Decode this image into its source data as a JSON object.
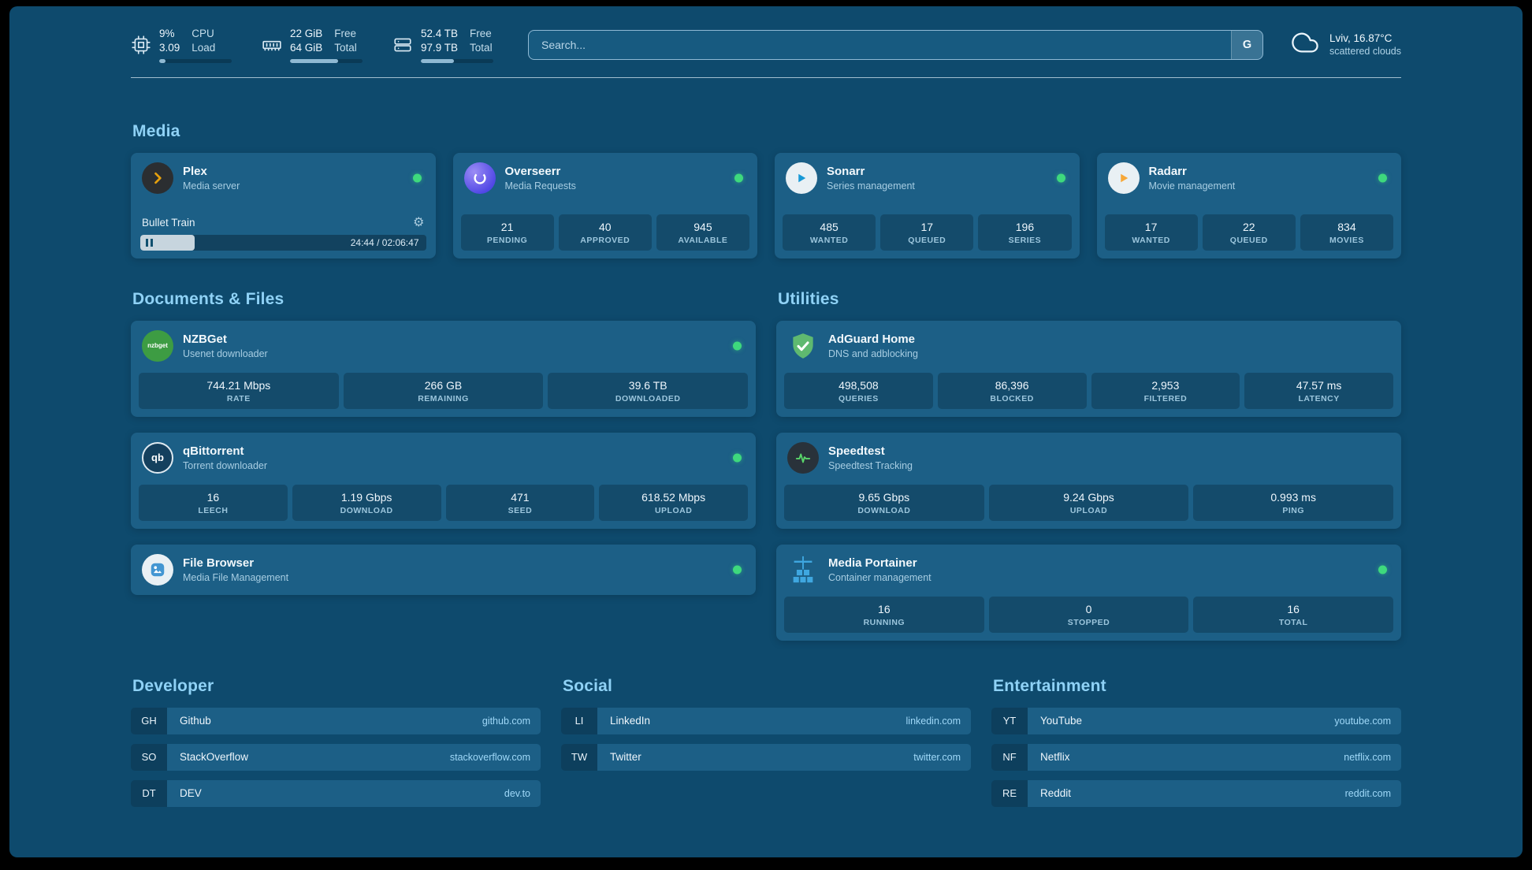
{
  "topbar": {
    "resources": [
      {
        "id": "cpu",
        "value1": "9%",
        "value2": "3.09",
        "label1": "CPU",
        "label2": "Load",
        "progress_percent": 9
      },
      {
        "id": "memory",
        "value1": "22 GiB",
        "value2": "64 GiB",
        "label1": "Free",
        "label2": "Total",
        "progress_percent": 66
      },
      {
        "id": "disk",
        "value1": "52.4 TB",
        "value2": "97.9 TB",
        "label1": "Free",
        "label2": "Total",
        "progress_percent": 46
      }
    ],
    "search": {
      "placeholder": "Search...",
      "provider_label": "G"
    },
    "weather": {
      "summary": "Lviv, 16.87°C",
      "condition": "scattered clouds"
    }
  },
  "sections": {
    "media": "Media",
    "documents": "Documents & Files",
    "utilities": "Utilities",
    "developer": "Developer",
    "social": "Social",
    "entertainment": "Entertainment"
  },
  "services": {
    "plex": {
      "title": "Plex",
      "subtitle": "Media server",
      "now_playing": "Bullet Train",
      "time": "24:44 / 02:06:47",
      "progress_percent": 19
    },
    "overseerr": {
      "title": "Overseerr",
      "subtitle": "Media Requests",
      "stats": [
        {
          "value": "21",
          "label": "PENDING"
        },
        {
          "value": "40",
          "label": "APPROVED"
        },
        {
          "value": "945",
          "label": "AVAILABLE"
        }
      ]
    },
    "sonarr": {
      "title": "Sonarr",
      "subtitle": "Series management",
      "stats": [
        {
          "value": "485",
          "label": "WANTED"
        },
        {
          "value": "17",
          "label": "QUEUED"
        },
        {
          "value": "196",
          "label": "SERIES"
        }
      ]
    },
    "radarr": {
      "title": "Radarr",
      "subtitle": "Movie management",
      "stats": [
        {
          "value": "17",
          "label": "WANTED"
        },
        {
          "value": "22",
          "label": "QUEUED"
        },
        {
          "value": "834",
          "label": "MOVIES"
        }
      ]
    },
    "nzbget": {
      "title": "NZBGet",
      "subtitle": "Usenet downloader",
      "icon_text": "nzbget",
      "stats": [
        {
          "value": "744.21 Mbps",
          "label": "RATE"
        },
        {
          "value": "266 GB",
          "label": "REMAINING"
        },
        {
          "value": "39.6 TB",
          "label": "DOWNLOADED"
        }
      ]
    },
    "qbittorrent": {
      "title": "qBittorrent",
      "subtitle": "Torrent downloader",
      "icon_text": "qb",
      "stats": [
        {
          "value": "16",
          "label": "LEECH"
        },
        {
          "value": "1.19 Gbps",
          "label": "DOWNLOAD"
        },
        {
          "value": "471",
          "label": "SEED"
        },
        {
          "value": "618.52 Mbps",
          "label": "UPLOAD"
        }
      ]
    },
    "filebrowser": {
      "title": "File Browser",
      "subtitle": "Media File Management"
    },
    "adguard": {
      "title": "AdGuard Home",
      "subtitle": "DNS and adblocking",
      "stats": [
        {
          "value": "498,508",
          "label": "QUERIES"
        },
        {
          "value": "86,396",
          "label": "BLOCKED"
        },
        {
          "value": "2,953",
          "label": "FILTERED"
        },
        {
          "value": "47.57 ms",
          "label": "LATENCY"
        }
      ]
    },
    "speedtest": {
      "title": "Speedtest",
      "subtitle": "Speedtest Tracking",
      "stats": [
        {
          "value": "9.65 Gbps",
          "label": "DOWNLOAD"
        },
        {
          "value": "9.24 Gbps",
          "label": "UPLOAD"
        },
        {
          "value": "0.993 ms",
          "label": "PING"
        }
      ]
    },
    "portainer": {
      "title": "Media Portainer",
      "subtitle": "Container management",
      "stats": [
        {
          "value": "16",
          "label": "RUNNING"
        },
        {
          "value": "0",
          "label": "STOPPED"
        },
        {
          "value": "16",
          "label": "TOTAL"
        }
      ]
    }
  },
  "bookmarks": {
    "developer": [
      {
        "abbr": "GH",
        "name": "Github",
        "url": "github.com"
      },
      {
        "abbr": "SO",
        "name": "StackOverflow",
        "url": "stackoverflow.com"
      },
      {
        "abbr": "DT",
        "name": "DEV",
        "url": "dev.to"
      }
    ],
    "social": [
      {
        "abbr": "LI",
        "name": "LinkedIn",
        "url": "linkedin.com"
      },
      {
        "abbr": "TW",
        "name": "Twitter",
        "url": "twitter.com"
      }
    ],
    "entertainment": [
      {
        "abbr": "YT",
        "name": "YouTube",
        "url": "youtube.com"
      },
      {
        "abbr": "NF",
        "name": "Netflix",
        "url": "netflix.com"
      },
      {
        "abbr": "RE",
        "name": "Reddit",
        "url": "reddit.com"
      }
    ]
  },
  "colors": {
    "status_online": "#3ed97d",
    "heading_accent": "#8fd2f6",
    "page_background": "#0e4a6d",
    "card_background": "#1c5f86"
  }
}
